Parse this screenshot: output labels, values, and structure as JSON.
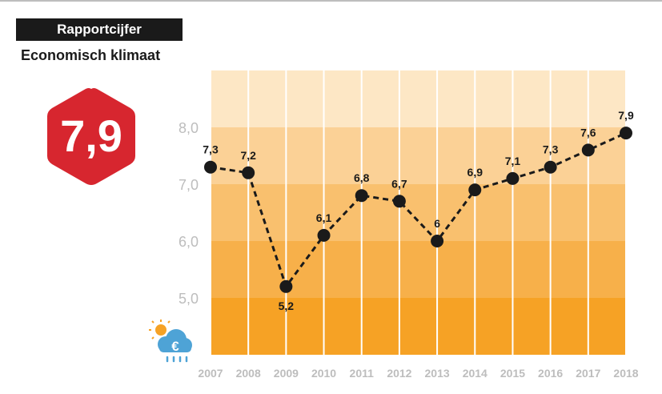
{
  "header": {
    "label": "Rapportcijfer",
    "subtitle": "Economisch klimaat"
  },
  "score": {
    "value": "7,9",
    "color": "#d7262f"
  },
  "icon": {
    "name": "weather-euro-icon"
  },
  "colors": {
    "bands": [
      "#f6a225",
      "#f7b04a",
      "#f9c06e",
      "#fbd196",
      "#fde7c5"
    ],
    "grid": "#ffffff",
    "tick": "#bdbdbd",
    "line": "#1a1a1a"
  },
  "chart_data": {
    "type": "line",
    "categories": [
      "2007",
      "2008",
      "2009",
      "2010",
      "2011",
      "2012",
      "2013",
      "2014",
      "2015",
      "2016",
      "2017",
      "2018"
    ],
    "values": [
      7.3,
      7.2,
      5.2,
      6.1,
      6.8,
      6.7,
      6.0,
      6.9,
      7.1,
      7.3,
      7.6,
      7.9
    ],
    "value_labels": [
      "7,3",
      "7,2",
      "5,2",
      "6,1",
      "6,8",
      "6,7",
      "6",
      "6,9",
      "7,1",
      "7,3",
      "7,6",
      "7,9"
    ],
    "yticks": [
      "5,0",
      "6,0",
      "7,0",
      "8,0"
    ],
    "ylim": [
      4.0,
      9.0
    ],
    "line_style": "dashed",
    "grid": "vertical"
  }
}
